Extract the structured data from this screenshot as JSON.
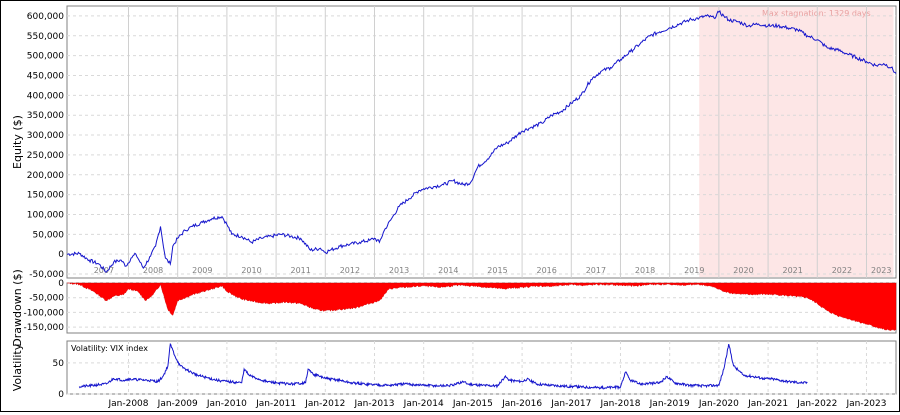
{
  "window_title": "",
  "chart_data": [
    {
      "type": "line",
      "panel": "equity",
      "ylabel": "Equity ($)",
      "ylim": [
        -60000,
        625000
      ],
      "yticks": [
        -50000,
        0,
        50000,
        100000,
        150000,
        200000,
        250000,
        300000,
        350000,
        400000,
        450000,
        500000,
        550000,
        600000
      ],
      "ytick_labels": [
        "-50,000",
        "0",
        "50,000",
        "100,000",
        "150,000",
        "200,000",
        "250,000",
        "300,000",
        "350,000",
        "400,000",
        "450,000",
        "500,000",
        "550,000",
        "600,000"
      ],
      "year_labels": [
        "2007",
        "2008",
        "2009",
        "2010",
        "2011",
        "2012",
        "2013",
        "2014",
        "2015",
        "2016",
        "2017",
        "2018",
        "2019",
        "2020",
        "2021",
        "2022",
        "2023"
      ],
      "grid": true,
      "line_color": "#1515cc",
      "stagnation": {
        "label": "Max stagnation: 1329 days",
        "start": 2019.6,
        "end": 2023.55,
        "color": "#fde6e6"
      },
      "series": [
        {
          "x": [
            2006.75,
            2007.0,
            2007.2,
            2007.4,
            2007.55,
            2007.7,
            2007.85,
            2007.95,
            2008.05,
            2008.15,
            2008.3,
            2008.45,
            2008.55,
            2008.65,
            2008.75,
            2008.85,
            2008.9,
            2009.0,
            2009.15,
            2009.3,
            2009.5,
            2009.7,
            2009.9,
            2010.0,
            2010.1,
            2010.3,
            2010.5,
            2010.7,
            2010.9,
            2011.1,
            2011.3,
            2011.5,
            2011.7,
            2011.9,
            2012.0,
            2012.1,
            2012.3,
            2012.5,
            2012.7,
            2012.9,
            2013.0,
            2013.1,
            2013.2,
            2013.35,
            2013.5,
            2013.7,
            2013.9,
            2014.0,
            2014.2,
            2014.4,
            2014.6,
            2014.8,
            2014.95,
            2015.1,
            2015.3,
            2015.5,
            2015.7,
            2015.9,
            2016.0,
            2016.2,
            2016.4,
            2016.6,
            2016.8,
            2017.0,
            2017.2,
            2017.4,
            2017.6,
            2017.8,
            2018.0,
            2018.2,
            2018.4,
            2018.6,
            2018.8,
            2019.0,
            2019.2,
            2019.4,
            2019.6,
            2019.75,
            2019.9,
            2020.0,
            2020.1,
            2020.2,
            2020.4,
            2020.6,
            2020.8,
            2021.0,
            2021.2,
            2021.4,
            2021.6,
            2021.8,
            2022.0,
            2022.2,
            2022.4,
            2022.6,
            2022.8,
            2023.0,
            2023.2,
            2023.35,
            2023.5,
            2023.6
          ],
          "y": [
            0,
            2000,
            -15000,
            -25000,
            -45000,
            -20000,
            -15000,
            -30000,
            -10000,
            0,
            -35000,
            -5000,
            20000,
            70000,
            -10000,
            -25000,
            20000,
            40000,
            60000,
            70000,
            80000,
            90000,
            95000,
            75000,
            50000,
            45000,
            30000,
            40000,
            45000,
            50000,
            45000,
            40000,
            10000,
            15000,
            5000,
            10000,
            20000,
            25000,
            30000,
            35000,
            40000,
            30000,
            60000,
            90000,
            120000,
            140000,
            160000,
            165000,
            170000,
            175000,
            185000,
            175000,
            180000,
            220000,
            240000,
            270000,
            280000,
            300000,
            310000,
            320000,
            330000,
            350000,
            360000,
            380000,
            400000,
            440000,
            460000,
            470000,
            490000,
            510000,
            530000,
            550000,
            560000,
            570000,
            580000,
            590000,
            595000,
            600000,
            595000,
            610000,
            600000,
            590000,
            585000,
            575000,
            580000,
            575000,
            575000,
            570000,
            565000,
            550000,
            540000,
            520000,
            515000,
            505000,
            495000,
            485000,
            475000,
            480000,
            470000,
            455000
          ]
        }
      ]
    },
    {
      "type": "area",
      "panel": "drawdown",
      "ylabel": "Drawdown ($)",
      "ylim": [
        -170000,
        0
      ],
      "yticks": [
        0,
        -50000,
        -100000,
        -150000
      ],
      "ytick_labels": [
        "0",
        "-50,000",
        "-100,000",
        "-150,000"
      ],
      "fill_color": "#ff0000",
      "series": [
        {
          "x": [
            2006.75,
            2007.0,
            2007.3,
            2007.55,
            2007.7,
            2007.9,
            2008.0,
            2008.2,
            2008.35,
            2008.5,
            2008.65,
            2008.8,
            2008.9,
            2009.0,
            2009.3,
            2009.6,
            2009.9,
            2010.0,
            2010.3,
            2010.6,
            2010.9,
            2011.2,
            2011.5,
            2011.8,
            2012.0,
            2012.3,
            2012.6,
            2012.9,
            2013.1,
            2013.3,
            2013.6,
            2014.0,
            2014.3,
            2014.7,
            2015.0,
            2015.3,
            2015.6,
            2016.0,
            2016.3,
            2016.6,
            2017.0,
            2017.3,
            2017.6,
            2018.0,
            2018.3,
            2018.6,
            2019.0,
            2019.3,
            2019.6,
            2019.8,
            2020.0,
            2020.1,
            2020.3,
            2020.6,
            2020.9,
            2021.2,
            2021.5,
            2021.8,
            2022.0,
            2022.2,
            2022.4,
            2022.6,
            2022.8,
            2023.0,
            2023.2,
            2023.4,
            2023.6
          ],
          "y": [
            0,
            -5000,
            -30000,
            -60000,
            -45000,
            -40000,
            -20000,
            -30000,
            -60000,
            -40000,
            -5000,
            -90000,
            -110000,
            -60000,
            -40000,
            -25000,
            -10000,
            -30000,
            -55000,
            -65000,
            -70000,
            -65000,
            -70000,
            -90000,
            -95000,
            -90000,
            -85000,
            -70000,
            -60000,
            -20000,
            -15000,
            -10000,
            -15000,
            -8000,
            -10000,
            -15000,
            -20000,
            -15000,
            -10000,
            -12000,
            -5000,
            -8000,
            -5000,
            -8000,
            -10000,
            -5000,
            -5000,
            -8000,
            -5000,
            -10000,
            -20000,
            -30000,
            -35000,
            -40000,
            -38000,
            -40000,
            -45000,
            -50000,
            -70000,
            -95000,
            -110000,
            -120000,
            -130000,
            -140000,
            -150000,
            -160000,
            -160000
          ]
        }
      ]
    },
    {
      "type": "line",
      "panel": "volatility",
      "ylabel": "Volatility",
      "legend_label": "Volatility: VIX index",
      "ylim": [
        0,
        85
      ],
      "yticks": [
        0,
        50
      ],
      "ytick_labels": [
        "0",
        "50"
      ],
      "line_color": "#1515cc",
      "xtick_labels": [
        "Jan-2008",
        "Jan-2009",
        "Jan-2010",
        "Jan-2011",
        "Jan-2012",
        "Jan-2013",
        "Jan-2014",
        "Jan-2015",
        "Jan-2016",
        "Jan-2017",
        "Jan-2018",
        "Jan-2019",
        "Jan-2020",
        "Jan-2021",
        "Jan-2022",
        "Jan-2023"
      ],
      "xticks": [
        2008,
        2009,
        2010,
        2011,
        2012,
        2013,
        2014,
        2015,
        2016,
        2017,
        2018,
        2019,
        2020,
        2021,
        2022,
        2023
      ],
      "series": [
        {
          "x": [
            2007.0,
            2007.2,
            2007.4,
            2007.55,
            2007.7,
            2007.9,
            2008.0,
            2008.2,
            2008.4,
            2008.6,
            2008.7,
            2008.8,
            2008.85,
            2008.95,
            2009.05,
            2009.2,
            2009.4,
            2009.6,
            2009.8,
            2010.0,
            2010.3,
            2010.35,
            2010.45,
            2010.6,
            2010.8,
            2011.0,
            2011.3,
            2011.6,
            2011.65,
            2011.75,
            2011.9,
            2012.0,
            2012.3,
            2012.5,
            2012.8,
            2013.0,
            2013.3,
            2013.6,
            2014.0,
            2014.3,
            2014.6,
            2014.8,
            2014.9,
            2015.2,
            2015.5,
            2015.65,
            2015.75,
            2016.0,
            2016.1,
            2016.3,
            2016.6,
            2017.0,
            2017.3,
            2017.6,
            2018.0,
            2018.1,
            2018.2,
            2018.4,
            2018.8,
            2018.95,
            2019.1,
            2019.4,
            2019.7,
            2020.0,
            2020.1,
            2020.2,
            2020.3,
            2020.5,
            2020.7,
            2020.9,
            2021.1,
            2021.4,
            2021.7,
            2021.8
          ],
          "y": [
            12,
            13,
            15,
            16,
            25,
            22,
            24,
            23,
            22,
            20,
            28,
            45,
            80,
            60,
            45,
            38,
            30,
            26,
            22,
            20,
            18,
            40,
            30,
            25,
            20,
            18,
            16,
            18,
            40,
            32,
            28,
            25,
            22,
            18,
            16,
            15,
            14,
            16,
            14,
            13,
            14,
            20,
            16,
            14,
            13,
            28,
            22,
            20,
            24,
            16,
            14,
            12,
            11,
            10,
            11,
            35,
            22,
            16,
            18,
            28,
            18,
            14,
            13,
            14,
            40,
            80,
            45,
            30,
            28,
            25,
            24,
            20,
            18,
            18
          ]
        }
      ]
    }
  ]
}
